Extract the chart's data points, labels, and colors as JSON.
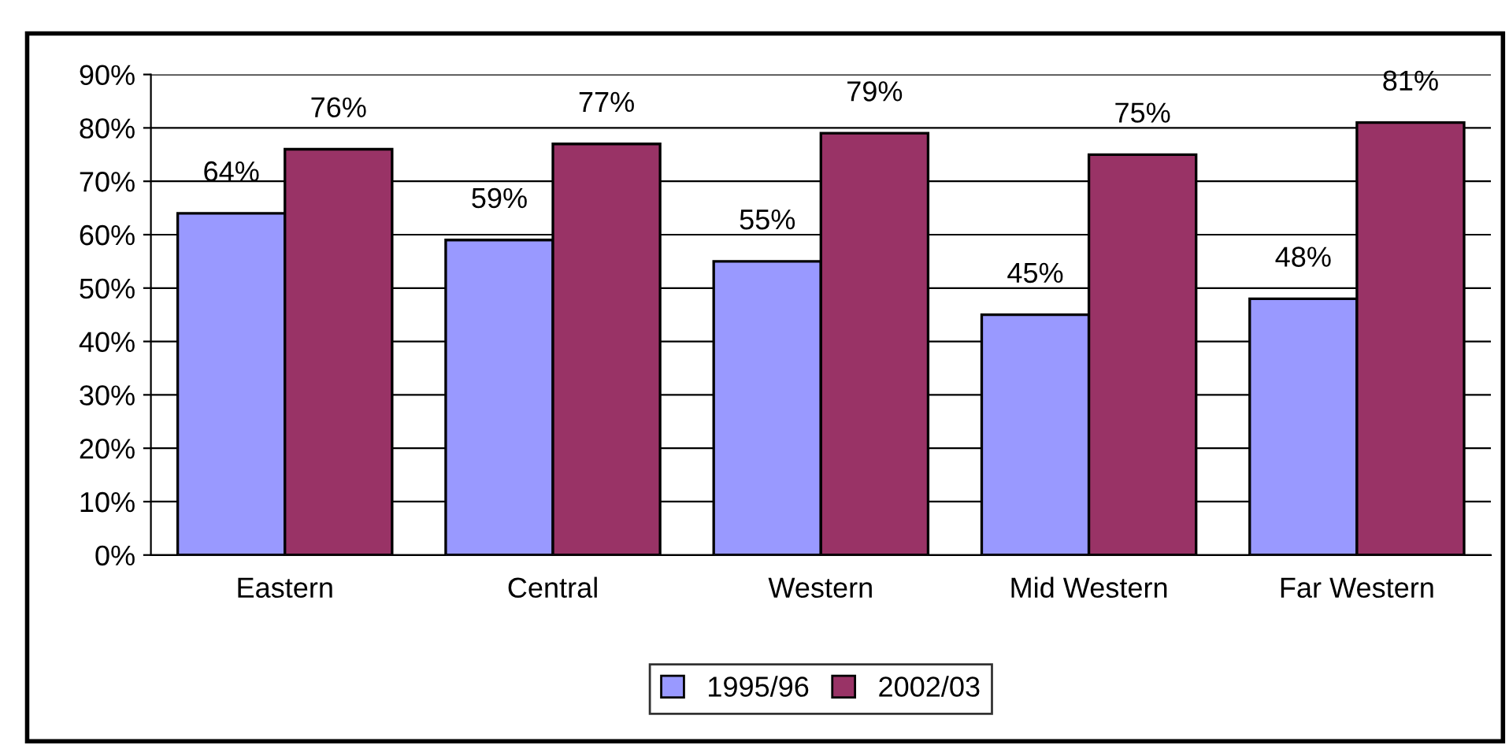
{
  "chart_data": {
    "type": "bar",
    "categories": [
      "Eastern",
      "Central",
      "Western",
      "Mid Western",
      "Far Western"
    ],
    "series": [
      {
        "name": "1995/96",
        "color": "#9999ff",
        "values": [
          64,
          59,
          55,
          45,
          48
        ],
        "value_labels": [
          "64%",
          "59%",
          "55%",
          "45%",
          "48%"
        ]
      },
      {
        "name": "2002/03",
        "color": "#993366",
        "values": [
          76,
          77,
          79,
          75,
          81
        ],
        "value_labels": [
          "76%",
          "77%",
          "79%",
          "75%",
          "81%"
        ]
      }
    ],
    "ylim": [
      0,
      90
    ],
    "yticks": [
      {
        "value": 0,
        "label": "0%"
      },
      {
        "value": 10,
        "label": "10%"
      },
      {
        "value": 20,
        "label": "20%"
      },
      {
        "value": 30,
        "label": "30%"
      },
      {
        "value": 40,
        "label": "40%"
      },
      {
        "value": 50,
        "label": "50%"
      },
      {
        "value": 60,
        "label": "60%"
      },
      {
        "value": 70,
        "label": "70%"
      },
      {
        "value": 80,
        "label": "80%"
      },
      {
        "value": 90,
        "label": "90%"
      }
    ],
    "grid": "y",
    "legend": "bottom"
  }
}
